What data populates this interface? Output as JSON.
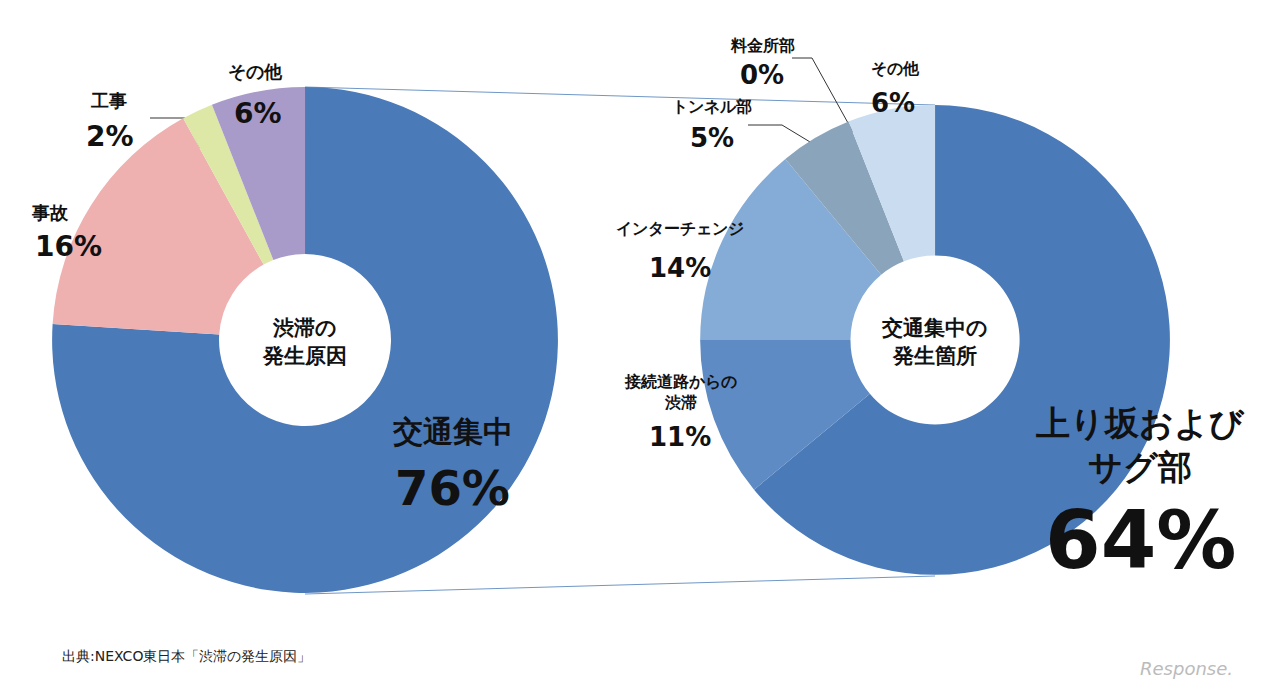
{
  "chart_data": [
    {
      "type": "pie",
      "title": "渋滞の発生原因",
      "categories": [
        "交通集中",
        "事故",
        "工事",
        "その他"
      ],
      "values": [
        76,
        16,
        2,
        6
      ],
      "value_labels": [
        "76%",
        "16%",
        "2%",
        "6%"
      ],
      "colors": [
        "#4a7ab8",
        "#efb0b0",
        "#dde8a6",
        "#a99bc9"
      ],
      "data_labels": true
    },
    {
      "type": "pie",
      "title": "交通集中の発生箇所",
      "categories": [
        "上り坂およびサグ部",
        "接続道路からの渋滞",
        "インターチェンジ",
        "トンネル部",
        "料金所部",
        "その他"
      ],
      "values": [
        64,
        11,
        14,
        5,
        0,
        6
      ],
      "value_labels": [
        "64%",
        "11%",
        "14%",
        "5%",
        "0%",
        "6%"
      ],
      "colors": [
        "#4a7ab8",
        "#5e8bc4",
        "#84acd6",
        "#8aa4bc",
        "#a9c0dc",
        "#c9dcf0"
      ],
      "data_labels": true
    }
  ],
  "source": "出典:NEXCO東日本「渋滞の発生原因」",
  "watermark": "Response."
}
